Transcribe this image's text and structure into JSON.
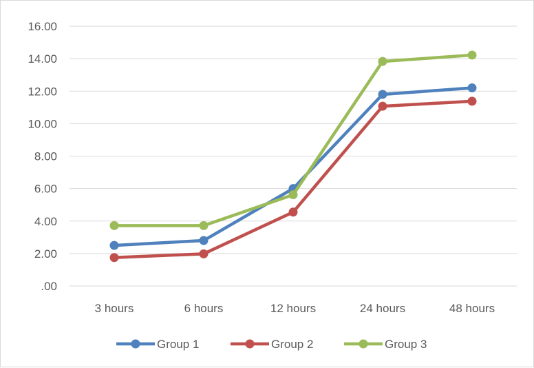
{
  "chart_data": {
    "type": "line",
    "title": "",
    "xlabel": "",
    "ylabel": "",
    "categories": [
      "3 hours",
      "6 hours",
      "12 hours",
      "24 hours",
      "48 hours"
    ],
    "ylim": [
      0,
      16
    ],
    "yticks": [
      0,
      2,
      4,
      6,
      8,
      10,
      12,
      14,
      16
    ],
    "ytick_labels": [
      ".00",
      "2.00",
      "4.00",
      "6.00",
      "8.00",
      "10.00",
      "12.00",
      "14.00",
      "16.00"
    ],
    "grid": true,
    "legend_position": "bottom",
    "series": [
      {
        "name": "Group 1",
        "color": "#4f81bd",
        "values": [
          2.5,
          2.8,
          6.0,
          11.8,
          12.2
        ]
      },
      {
        "name": "Group 2",
        "color": "#c0504d",
        "values": [
          1.75,
          1.98,
          4.55,
          11.07,
          11.38
        ]
      },
      {
        "name": "Group 3",
        "color": "#9bbb59",
        "values": [
          3.72,
          3.72,
          5.62,
          13.83,
          14.22
        ]
      }
    ]
  }
}
